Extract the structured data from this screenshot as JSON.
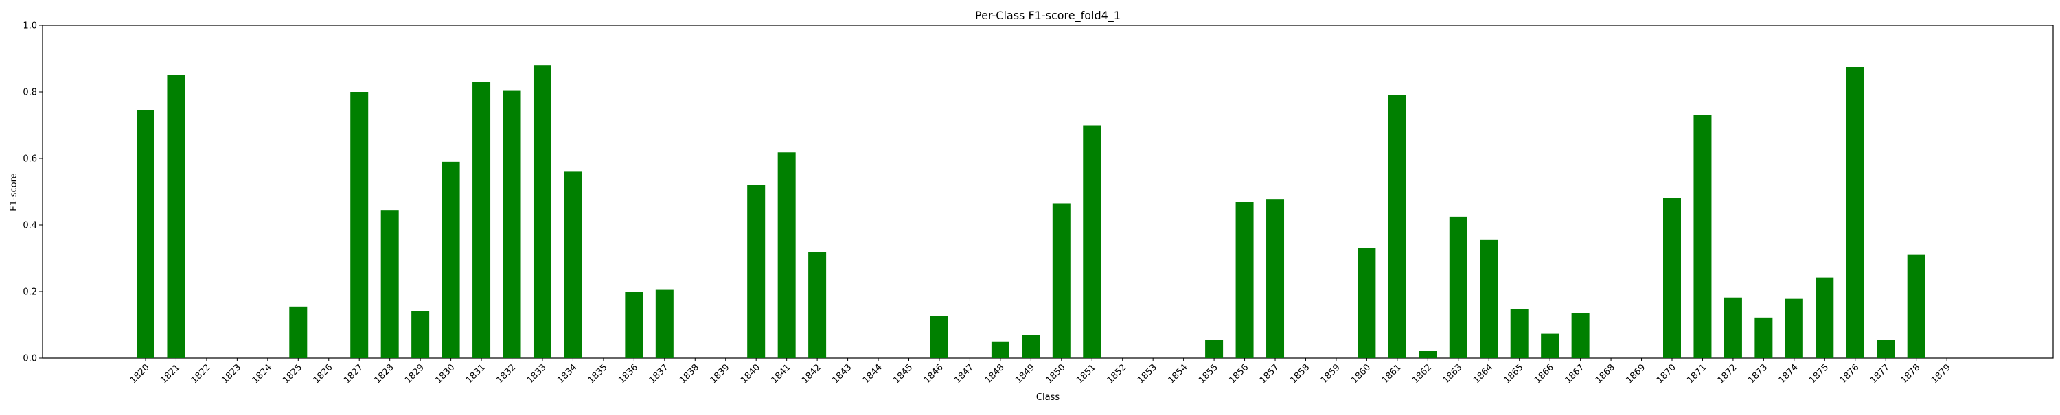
{
  "chart_data": {
    "type": "bar",
    "title": "Per-Class F1-score_fold4_1",
    "xlabel": "Class",
    "ylabel": "F1-score",
    "ylim": [
      0,
      1.0
    ],
    "yticks": [
      "0.0",
      "0.2",
      "0.4",
      "0.6",
      "0.8",
      "1.0"
    ],
    "bar_color": "#008000",
    "grid": false,
    "legend": "none",
    "categories": [
      "1820",
      "1821",
      "1822",
      "1823",
      "1824",
      "1825",
      "1826",
      "1827",
      "1828",
      "1829",
      "1830",
      "1831",
      "1832",
      "1833",
      "1834",
      "1835",
      "1836",
      "1837",
      "1838",
      "1839",
      "1840",
      "1841",
      "1842",
      "1843",
      "1844",
      "1845",
      "1846",
      "1847",
      "1848",
      "1849",
      "1850",
      "1851",
      "1852",
      "1853",
      "1854",
      "1855",
      "1856",
      "1857",
      "1858",
      "1859",
      "1860",
      "1861",
      "1862",
      "1863",
      "1864",
      "1865",
      "1866",
      "1867",
      "1868",
      "1869",
      "1870",
      "1871",
      "1872",
      "1873",
      "1874",
      "1875",
      "1876",
      "1877",
      "1878",
      "1879"
    ],
    "values": [
      0.745,
      0.85,
      0,
      0,
      0,
      0.155,
      0,
      0.8,
      0.445,
      0.142,
      0.59,
      0.83,
      0.805,
      0.88,
      0.56,
      0,
      0.2,
      0.205,
      0,
      0,
      0.52,
      0.618,
      0.318,
      0,
      0,
      0,
      0.127,
      0,
      0.05,
      0.07,
      0.465,
      0.7,
      0,
      0,
      0,
      0.055,
      0.47,
      0.478,
      0,
      0,
      0.33,
      0.79,
      0.022,
      0.425,
      0.355,
      0.147,
      0.073,
      0.135,
      0,
      0,
      0.482,
      0.73,
      0.182,
      0.122,
      0.178,
      0.242,
      0.875,
      0.055,
      0.31,
      0
    ]
  }
}
